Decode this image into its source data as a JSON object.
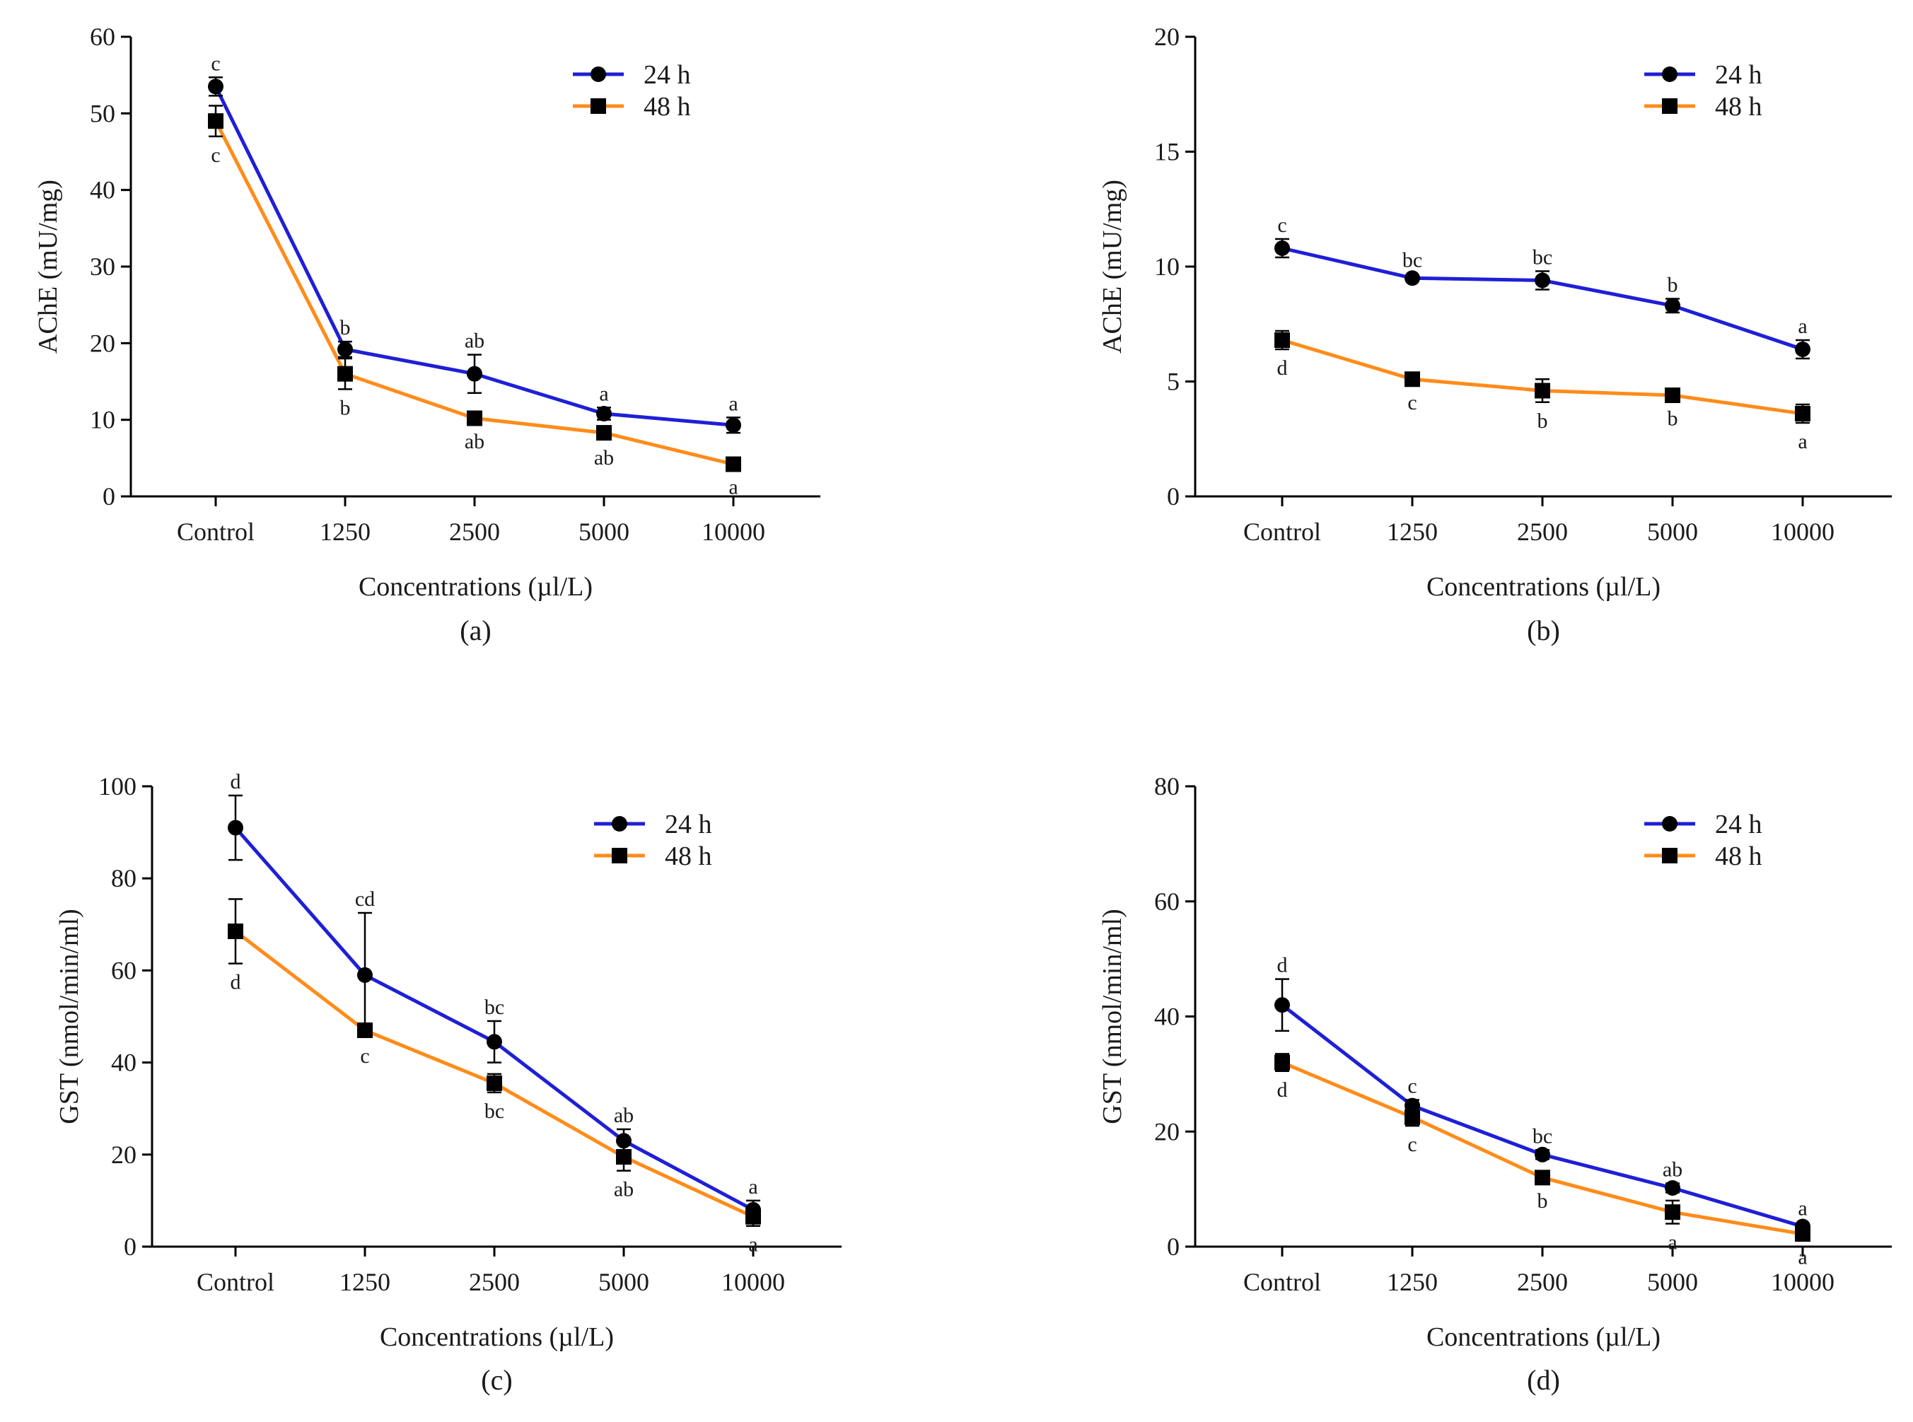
{
  "chart_data": [
    {
      "type": "line",
      "panel": "(a)",
      "xlabel": "Concentrations (µl/L)",
      "ylabel": "AChE (mU/mg)",
      "categories": [
        "Control",
        "1250",
        "2500",
        "5000",
        "10000"
      ],
      "ylim": [
        0,
        60
      ],
      "yticks": [
        0,
        10,
        20,
        30,
        40,
        50,
        60
      ],
      "legend_position": "top-right",
      "series": [
        {
          "name": "24 h",
          "marker": "circle",
          "color": "#1f1fd6",
          "values": [
            53.5,
            19.2,
            16.0,
            10.8,
            9.3
          ],
          "errors": [
            1.2,
            1.0,
            2.5,
            0.8,
            1.0
          ],
          "letters": [
            "c",
            "b",
            "ab",
            "a",
            "a"
          ]
        },
        {
          "name": "48 h",
          "marker": "square",
          "color": "#ff8c1a",
          "values": [
            49.0,
            16.0,
            10.2,
            8.3,
            4.2
          ],
          "errors": [
            2.0,
            2.0,
            0.6,
            0.8,
            0.5
          ],
          "letters": [
            "c",
            "b",
            "ab",
            "ab",
            "a"
          ]
        }
      ]
    },
    {
      "type": "line",
      "panel": "(b)",
      "xlabel": "Concentrations (µl/L)",
      "ylabel": "AChE (mU/mg)",
      "categories": [
        "Control",
        "1250",
        "2500",
        "5000",
        "10000"
      ],
      "ylim": [
        0,
        20
      ],
      "yticks": [
        0,
        5,
        10,
        15,
        20
      ],
      "legend_position": "top-right",
      "series": [
        {
          "name": "24 h",
          "marker": "circle",
          "color": "#1f1fd6",
          "values": [
            10.8,
            9.5,
            9.4,
            8.3,
            6.4
          ],
          "errors": [
            0.4,
            0.1,
            0.4,
            0.3,
            0.4
          ],
          "letters": [
            "c",
            "bc",
            "bc",
            "b",
            "a"
          ]
        },
        {
          "name": "48 h",
          "marker": "square",
          "color": "#ff8c1a",
          "values": [
            6.8,
            5.1,
            4.6,
            4.4,
            3.6
          ],
          "errors": [
            0.4,
            0.2,
            0.5,
            0.2,
            0.4
          ],
          "letters": [
            "d",
            "c",
            "b",
            "b",
            "a"
          ]
        }
      ]
    },
    {
      "type": "line",
      "panel": "(c)",
      "xlabel": "Concentrations (µl/L)",
      "ylabel": "GST (nmol/min/ml)",
      "categories": [
        "Control",
        "1250",
        "2500",
        "5000",
        "10000"
      ],
      "ylim": [
        0,
        100
      ],
      "yticks": [
        0,
        20,
        40,
        60,
        80,
        100
      ],
      "legend_position": "top-right",
      "series": [
        {
          "name": "24 h",
          "marker": "circle",
          "color": "#1f1fd6",
          "values": [
            91,
            59,
            44.5,
            23,
            8
          ],
          "errors": [
            7,
            13.5,
            4.5,
            2.5,
            2
          ],
          "letters": [
            "d",
            "cd",
            "bc",
            "ab",
            "a"
          ]
        },
        {
          "name": "48 h",
          "marker": "square",
          "color": "#ff8c1a",
          "values": [
            68.5,
            47,
            35.5,
            19.5,
            6.5
          ],
          "errors": [
            7,
            1.5,
            2,
            3,
            2
          ],
          "letters": [
            "d",
            "c",
            "bc",
            "ab",
            "a"
          ]
        }
      ]
    },
    {
      "type": "line",
      "panel": "(d)",
      "xlabel": "Concentrations (µl/L)",
      "ylabel": "GST (nmol/min/ml)",
      "categories": [
        "Control",
        "1250",
        "2500",
        "5000",
        "10000"
      ],
      "ylim": [
        0,
        80
      ],
      "yticks": [
        0,
        20,
        40,
        60,
        80
      ],
      "legend_position": "top-right",
      "series": [
        {
          "name": "24 h",
          "marker": "circle",
          "color": "#1f1fd6",
          "values": [
            42,
            24.5,
            16,
            10.2,
            3.5
          ],
          "errors": [
            4.5,
            1,
            0.8,
            0.8,
            0.5
          ],
          "letters": [
            "d",
            "c",
            "bc",
            "ab",
            "a"
          ]
        },
        {
          "name": "48 h",
          "marker": "square",
          "color": "#ff8c1a",
          "values": [
            32,
            22.5,
            12,
            6,
            2.2
          ],
          "errors": [
            1.5,
            1.5,
            0.8,
            2,
            0.8
          ],
          "letters": [
            "d",
            "c",
            "b",
            "a",
            "a"
          ]
        }
      ]
    }
  ]
}
